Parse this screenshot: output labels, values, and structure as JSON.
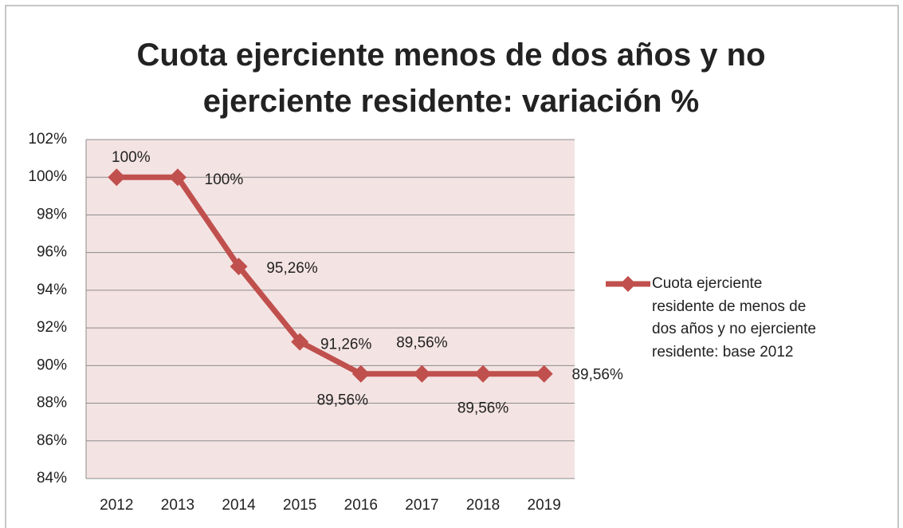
{
  "chart_data": {
    "type": "line",
    "title": "Cuota ejerciente menos de dos años y no ejerciente residente: variación %",
    "categories": [
      "2012",
      "2013",
      "2014",
      "2015",
      "2016",
      "2017",
      "2018",
      "2019"
    ],
    "series": [
      {
        "name": "Cuota ejerciente residente de menos de dos años y no ejerciente residente: base 2012",
        "color": "#c0504d",
        "values": [
          100,
          100,
          95.26,
          91.26,
          89.56,
          89.56,
          89.56,
          89.56
        ],
        "value_labels": [
          "100%",
          "100%",
          "95,26%",
          "91,26%",
          "89,56%",
          "89,56%",
          "89,56%",
          "89,56%"
        ]
      }
    ],
    "ylim": [
      84,
      102
    ],
    "yticks": [
      {
        "value": 84,
        "label": "84%"
      },
      {
        "value": 86,
        "label": "86%"
      },
      {
        "value": 88,
        "label": "88%"
      },
      {
        "value": 90,
        "label": "90%"
      },
      {
        "value": 92,
        "label": "92%"
      },
      {
        "value": 94,
        "label": "94%"
      },
      {
        "value": 96,
        "label": "96%"
      },
      {
        "value": 98,
        "label": "98%"
      },
      {
        "value": 100,
        "label": "100%"
      },
      {
        "value": 102,
        "label": "102%"
      }
    ],
    "grid": true,
    "legend": "right"
  }
}
